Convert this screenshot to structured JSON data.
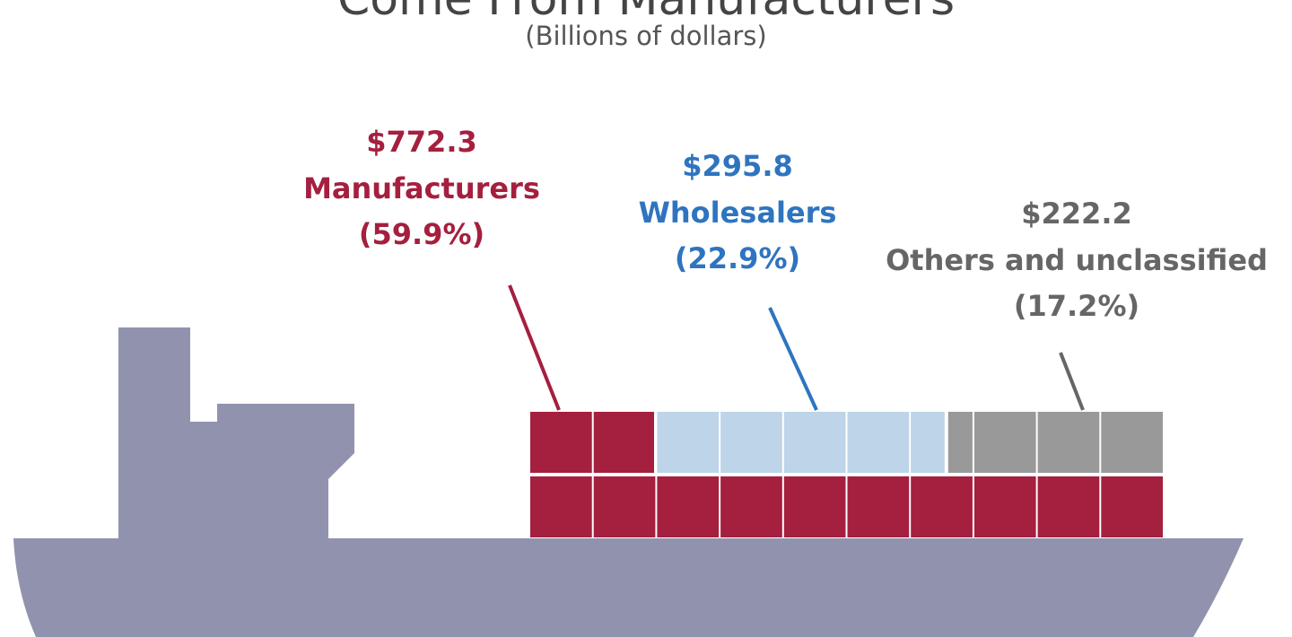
{
  "chart_data": {
    "type": "waffle",
    "title": "Come From Manufacturers",
    "subtitle": "(Billions of dollars)",
    "categories": [
      "Manufacturers",
      "Wholesalers",
      "Others and unclassified"
    ],
    "values": [
      772.3,
      295.8,
      222.2
    ],
    "value_labels": [
      "$772.3",
      "$295.8",
      "$222.2"
    ],
    "percentages": [
      59.9,
      22.9,
      17.2
    ],
    "percentage_labels": [
      "(59.9%)",
      "(22.9%)",
      "(17.2%)"
    ],
    "colors": [
      "#a51f3e",
      "#bed4e8",
      "#999999"
    ],
    "label_colors": [
      "#a51f3e",
      "#2e74c0",
      "#666666"
    ]
  }
}
